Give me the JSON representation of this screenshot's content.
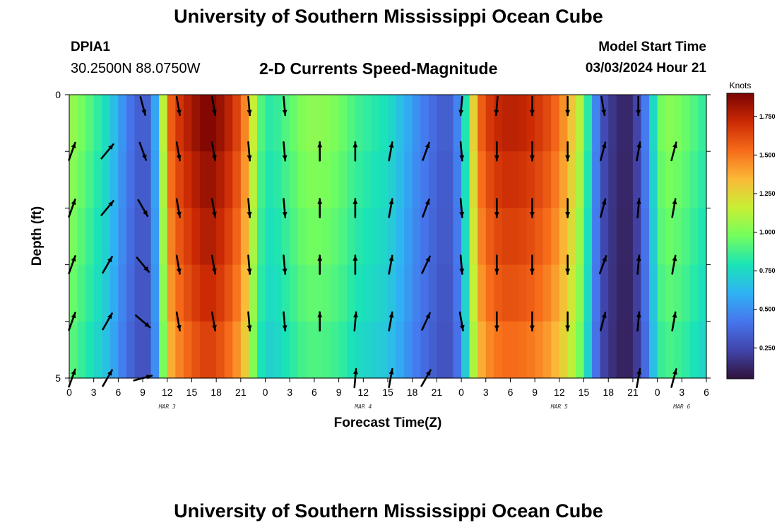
{
  "header": {
    "title": "University of Southern Mississippi Ocean Cube",
    "station": "DPIA1",
    "coordinates": "30.2500N  88.0750W",
    "subtitle": "2-D Currents Speed-Magnitude",
    "model_start_label": "Model Start Time",
    "model_start_value": "03/03/2024 Hour 21"
  },
  "footer": {
    "title": "University of Southern Mississippi Ocean Cube"
  },
  "chart_data": {
    "type": "heatmap",
    "title": "2-D Currents Speed-Magnitude",
    "xlabel": "Forecast Time(Z)",
    "ylabel": "Depth (ft)",
    "x_tick_labels": [
      "0",
      "3",
      "6",
      "9",
      "12",
      "15",
      "18",
      "21",
      "0",
      "3",
      "6",
      "9",
      "12",
      "15",
      "18",
      "21",
      "0",
      "3",
      "6",
      "9",
      "12",
      "15",
      "18",
      "21",
      "0",
      "3",
      "6"
    ],
    "x_hours_range": [
      0,
      78
    ],
    "day_labels": [
      {
        "label": "MAR 3",
        "hour": 12
      },
      {
        "label": "MAR 4",
        "hour": 36
      },
      {
        "label": "MAR 5",
        "hour": 60
      },
      {
        "label": "MAR 6",
        "hour": 75
      }
    ],
    "y_tick_labels": [
      "0",
      "5"
    ],
    "ylim": [
      0,
      5
    ],
    "depth_layers": 5,
    "colorbar": {
      "unit": "Knots",
      "min": 0.05,
      "max": 1.9,
      "tick_values": [
        0.25,
        0.5,
        0.75,
        1.0,
        1.25,
        1.5,
        1.75
      ],
      "tick_labels": [
        "0.250",
        "0.500",
        "0.750",
        "1.000",
        "1.250",
        "1.500",
        "1.750"
      ]
    },
    "speed_profile": {
      "hours": [
        0,
        1,
        3,
        5,
        6,
        7,
        8,
        9,
        10,
        11,
        12,
        13,
        15,
        17,
        19,
        21,
        22,
        23,
        24,
        25,
        27,
        29,
        31,
        33,
        35,
        37,
        39,
        41,
        43,
        45,
        46,
        47,
        48,
        49,
        50,
        51,
        52,
        53,
        55,
        57,
        59,
        61,
        63,
        64,
        65,
        66,
        67,
        68,
        69,
        70,
        71,
        72,
        73,
        75,
        77,
        78
      ],
      "speed_kt": [
        1.05,
        0.98,
        0.85,
        0.7,
        0.55,
        0.45,
        0.35,
        0.3,
        0.35,
        0.75,
        1.45,
        1.6,
        1.75,
        1.85,
        1.75,
        1.55,
        1.3,
        0.95,
        0.8,
        0.8,
        0.9,
        1.0,
        1.0,
        0.95,
        0.85,
        0.8,
        0.75,
        0.6,
        0.45,
        0.35,
        0.3,
        0.35,
        0.55,
        1.0,
        1.45,
        1.6,
        1.65,
        1.7,
        1.7,
        1.65,
        1.55,
        1.35,
        1.0,
        0.6,
        0.3,
        0.2,
        0.15,
        0.1,
        0.15,
        0.3,
        0.55,
        0.9,
        1.0,
        0.95,
        0.85,
        0.8
      ]
    },
    "depth_factor": [
      1.03,
      1.0,
      0.97,
      0.94,
      0.9
    ],
    "vectors": {
      "rows_depth": [
        0,
        1,
        2,
        3,
        4,
        5
      ],
      "cols_hours": [
        0,
        4.33,
        8.67,
        13,
        17.33,
        21.67,
        26,
        30.33,
        34.67,
        39,
        43.33,
        47.67,
        52,
        56.33,
        60.67,
        65,
        69.33,
        73.67
      ],
      "direction_deg": [
        [
          null,
          null,
          165,
          170,
          170,
          175,
          175,
          null,
          null,
          null,
          null,
          185,
          185,
          180,
          180,
          170,
          180,
          null
        ],
        [
          20,
          40,
          160,
          170,
          170,
          175,
          175,
          0,
          0,
          10,
          20,
          175,
          180,
          180,
          180,
          15,
          10,
          15
        ],
        [
          20,
          40,
          150,
          170,
          170,
          175,
          175,
          0,
          0,
          10,
          20,
          175,
          180,
          180,
          180,
          15,
          5,
          10
        ],
        [
          20,
          30,
          140,
          170,
          170,
          175,
          175,
          0,
          0,
          10,
          25,
          175,
          180,
          180,
          180,
          20,
          5,
          10
        ],
        [
          20,
          30,
          130,
          170,
          170,
          175,
          175,
          0,
          5,
          10,
          25,
          170,
          180,
          180,
          180,
          15,
          5,
          10
        ],
        [
          20,
          30,
          75,
          null,
          null,
          null,
          null,
          null,
          5,
          10,
          30,
          null,
          null,
          null,
          null,
          null,
          10,
          15
        ]
      ]
    }
  }
}
